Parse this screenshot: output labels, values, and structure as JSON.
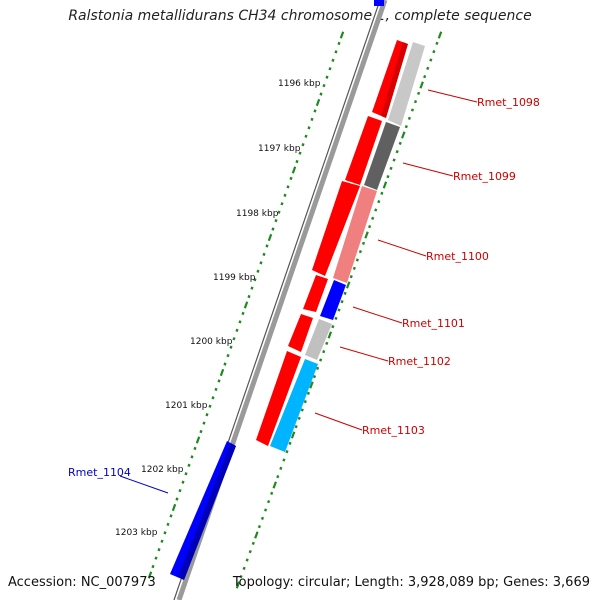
{
  "title": "Ralstonia metallidurans CH34 chromosome 1, complete sequence",
  "accession_text": "Accession: NC_007973",
  "summary_text": "Topology: circular; Length: 3,928,089 bp; Genes: 3,669",
  "colors": {
    "backbone": "#8a8a8a",
    "tick_dot": "#1e8a1e",
    "forward_label": "#cc0000",
    "reverse_label": "#0000cc",
    "red": "#ff0000",
    "blue": "#0000ff",
    "light_gray": "#c0c0c0",
    "dark_gray": "#606060",
    "salmon": "#f08080",
    "cyan": "#00b4ff"
  },
  "ticks": [
    {
      "label": "1196 kbp"
    },
    {
      "label": "1197 kbp"
    },
    {
      "label": "1198 kbp"
    },
    {
      "label": "1199 kbp"
    },
    {
      "label": "1200 kbp"
    },
    {
      "label": "1201 kbp"
    },
    {
      "label": "1202 kbp"
    },
    {
      "label": "1203 kbp"
    }
  ],
  "gene_labels": [
    {
      "name": "Rmet_1098",
      "strand": "forward"
    },
    {
      "name": "Rmet_1099",
      "strand": "forward"
    },
    {
      "name": "Rmet_1100",
      "strand": "forward"
    },
    {
      "name": "Rmet_1101",
      "strand": "forward"
    },
    {
      "name": "Rmet_1102",
      "strand": "forward"
    },
    {
      "name": "Rmet_1103",
      "strand": "forward"
    },
    {
      "name": "Rmet_1104",
      "strand": "reverse"
    }
  ]
}
